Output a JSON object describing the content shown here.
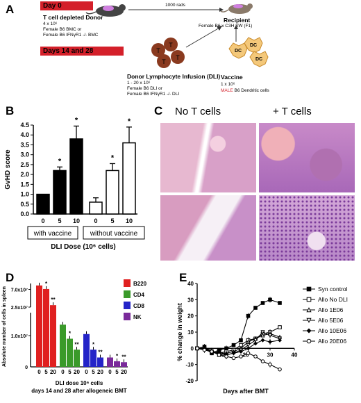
{
  "panels": {
    "a": "A",
    "b": "B",
    "c": "C",
    "d": "D",
    "e": "E"
  },
  "panel_a": {
    "day0": "Day 0",
    "days1428": "Days 14 and 28",
    "donor_title": "T cell depleted Donor",
    "donor_lines": [
      "4 x 10⁶",
      "Female B6 BMC or",
      "Female B6 IFNγR1 -/- BMC"
    ],
    "rads": "1000 rads",
    "recipient_title": "Recipient",
    "recipient_line": "Female B6 x C3H SW (F1)",
    "dli_title": "Donor Lymphocyte Infusion (DLI)",
    "dli_lines": [
      "1 - 20 x 10⁶",
      "Female B6 DLI or",
      "Female B6 IFNγR1 -/- DLI"
    ],
    "vaccine_title": "Vaccine",
    "vaccine_line1": "1 x 10⁶",
    "vaccine_male": "MALE",
    "vaccine_line2": " B6 Dendritic cells",
    "t_letter": "T",
    "dc_letter": "DC",
    "colors": {
      "red": "#d4202a",
      "tcell": "#8a3a1f",
      "dc": "#f4c87a",
      "mouse": "#444444"
    }
  },
  "panel_b": {
    "ylabel": "GvHD score",
    "xlabel": "DLI Dose (10⁶ cells)",
    "group1": "with vaccine",
    "group2": "without vaccine",
    "chart_data": {
      "type": "bar",
      "categories": [
        "0",
        "5",
        "10",
        "0",
        "5",
        "10"
      ],
      "groups": [
        "with vaccine",
        "with vaccine",
        "with vaccine",
        "without vaccine",
        "without vaccine",
        "without vaccine"
      ],
      "values": [
        1.0,
        2.2,
        3.8,
        0.6,
        2.2,
        3.6
      ],
      "errors": [
        0.0,
        0.18,
        0.65,
        0.22,
        0.35,
        0.8
      ],
      "significance": [
        "",
        "*",
        "*",
        "",
        "*",
        "*"
      ],
      "ylim": [
        0,
        4.5
      ],
      "yticks": [
        "0.0",
        "0.5",
        "1.0",
        "1.5",
        "2.0",
        "2.5",
        "3.0",
        "3.5",
        "4.0",
        "4.5"
      ],
      "fill": [
        "#000000",
        "#000000",
        "#000000",
        "#ffffff",
        "#ffffff",
        "#ffffff"
      ]
    }
  },
  "panel_c": {
    "col1": "No T cells",
    "col2": "+ T cells"
  },
  "panel_d": {
    "ylabel": "Absolute number of cells in spleen",
    "xlabel_line1": "DLI dose 10⁶ cells",
    "xlabel_line2": "days 14 and 28 after allogeneic BMT",
    "ytick_top": "7.0x10⁷",
    "ytick_mid": "2.5x10⁷",
    "ytick_low": "1.0x10⁷",
    "ytick_zero": "0",
    "chart_data": {
      "type": "bar",
      "categories": [
        "0",
        "5",
        "20"
      ],
      "series": [
        {
          "name": "B220",
          "color": "#e02020",
          "values": [
            80000000.0,
            71000000.0,
            30000000.0
          ],
          "sig": [
            "",
            "*",
            "**"
          ]
        },
        {
          "name": "CD4",
          "color": "#3a9a2a",
          "values": [
            13500000.0,
            9000000.0,
            5500000.0
          ],
          "sig": [
            "",
            "*",
            "**"
          ]
        },
        {
          "name": "CD8",
          "color": "#2424c8",
          "values": [
            10500000.0,
            5500000.0,
            3000000.0
          ],
          "sig": [
            "",
            "*",
            "**"
          ]
        },
        {
          "name": "NK",
          "color": "#7a2a9a",
          "values": [
            3000000.0,
            1800000.0,
            1500000.0
          ],
          "sig": [
            "",
            "*",
            "**"
          ]
        }
      ],
      "axis_break": true
    }
  },
  "panel_e": {
    "ylabel": "% change in weight",
    "xlabel": "Days after BMT",
    "chart_data": {
      "type": "line",
      "xlim": [
        0,
        40
      ],
      "ylim": [
        -20,
        40
      ],
      "xticks": [
        "10",
        "20",
        "30",
        "40"
      ],
      "yticks": [
        "-20",
        "-10",
        "0",
        "10",
        "20",
        "30",
        "40"
      ],
      "series": [
        {
          "name": "Syn control",
          "marker": "square-filled",
          "x": [
            0,
            3,
            6,
            9,
            12,
            15,
            18,
            21,
            24,
            27,
            30,
            34
          ],
          "y": [
            0,
            1,
            -3,
            -1,
            0,
            2,
            5,
            20,
            25,
            28,
            30,
            28
          ]
        },
        {
          "name": "Allo No DLI",
          "marker": "square-open",
          "x": [
            0,
            3,
            6,
            9,
            12,
            15,
            18,
            21,
            24,
            27,
            30,
            34
          ],
          "y": [
            0,
            0,
            -2,
            -3,
            -2,
            -1,
            2,
            5,
            6,
            9,
            10,
            13
          ]
        },
        {
          "name": "Allo 1E06",
          "marker": "triangle-up",
          "x": [
            0,
            3,
            6,
            9,
            12,
            15,
            18,
            21,
            24,
            27,
            30,
            34
          ],
          "y": [
            0,
            0,
            -1,
            -4,
            -3,
            -2,
            0,
            4,
            6,
            8,
            9,
            7
          ]
        },
        {
          "name": "Allo 5E06",
          "marker": "triangle-down",
          "x": [
            0,
            3,
            6,
            9,
            12,
            15,
            18,
            21,
            24,
            27,
            30,
            34
          ],
          "y": [
            0,
            -1,
            -2,
            -3,
            -4,
            -3,
            -1,
            2,
            5,
            10,
            8,
            6
          ]
        },
        {
          "name": "Allo 10E06",
          "marker": "diamond",
          "x": [
            0,
            3,
            6,
            9,
            12,
            15,
            18,
            21,
            24,
            27,
            30,
            34
          ],
          "y": [
            0,
            0,
            -3,
            -2,
            -4,
            -3,
            -2,
            0,
            3,
            5,
            4,
            5
          ]
        },
        {
          "name": "Allo 20E06",
          "marker": "circle-open",
          "x": [
            0,
            3,
            6,
            9,
            12,
            15,
            18,
            21,
            24,
            27,
            30,
            34
          ],
          "y": [
            0,
            -1,
            -2,
            -4,
            -5,
            -6,
            -5,
            -3,
            -5,
            -8,
            -10,
            -13
          ]
        }
      ]
    }
  }
}
